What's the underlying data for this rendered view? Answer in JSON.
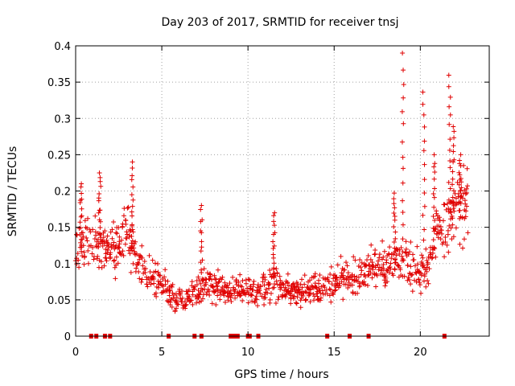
{
  "chart_data": {
    "type": "scatter",
    "title": "Day 203 of 2017, SRMTID for receiver tnsj",
    "xlabel": "GPS time / hours",
    "ylabel": "SRMTID / TECUs",
    "xlim": [
      0,
      24
    ],
    "ylim": [
      0,
      0.4
    ],
    "x_ticks": [
      0,
      5,
      10,
      15,
      20
    ],
    "x_tick_labels": [
      "0",
      "5",
      "10",
      "15",
      "20"
    ],
    "y_ticks": [
      0,
      0.05,
      0.1,
      0.15,
      0.2,
      0.25,
      0.3,
      0.35,
      0.4
    ],
    "y_tick_labels": [
      "0",
      "0.05",
      "0.1",
      "0.15",
      "0.2",
      "0.25",
      "0.3",
      "0.35",
      "0.4"
    ],
    "grid": true,
    "marker": "+",
    "color": "#e00000",
    "trend": {
      "x": [
        0,
        0.5,
        1,
        1.5,
        2,
        2.5,
        3,
        3.5,
        4,
        4.5,
        5,
        5.5,
        6,
        6.5,
        7,
        7.5,
        8,
        8.5,
        9,
        9.5,
        10,
        10.5,
        11,
        11.5,
        12,
        12.5,
        13,
        13.5,
        14,
        14.5,
        15,
        15.5,
        16,
        16.5,
        17,
        17.5,
        18,
        18.5,
        19,
        19.5,
        20,
        20.5,
        21,
        21.5,
        22,
        22.5
      ],
      "y": [
        0.12,
        0.13,
        0.125,
        0.13,
        0.12,
        0.13,
        0.14,
        0.11,
        0.09,
        0.085,
        0.07,
        0.055,
        0.05,
        0.055,
        0.06,
        0.07,
        0.07,
        0.065,
        0.06,
        0.065,
        0.06,
        0.055,
        0.065,
        0.08,
        0.07,
        0.06,
        0.06,
        0.065,
        0.065,
        0.07,
        0.075,
        0.08,
        0.08,
        0.085,
        0.09,
        0.095,
        0.1,
        0.1,
        0.11,
        0.1,
        0.09,
        0.1,
        0.14,
        0.15,
        0.17,
        0.18
      ]
    },
    "spikes": [
      {
        "x": 0.3,
        "y_max": 0.21
      },
      {
        "x": 1.4,
        "y_max": 0.225
      },
      {
        "x": 3.3,
        "y_max": 0.24
      },
      {
        "x": 7.3,
        "y_max": 0.18
      },
      {
        "x": 11.5,
        "y_max": 0.17
      },
      {
        "x": 18.5,
        "y_max": 0.2
      },
      {
        "x": 19.0,
        "y_max": 0.39
      },
      {
        "x": 20.2,
        "y_max": 0.34
      },
      {
        "x": 20.8,
        "y_max": 0.25
      },
      {
        "x": 21.7,
        "y_max": 0.36
      },
      {
        "x": 21.9,
        "y_max": 0.29
      },
      {
        "x": 22.3,
        "y_max": 0.25
      }
    ],
    "gap_markers_x": [
      0.9,
      1.2,
      1.7,
      2.0,
      5.4,
      6.9,
      7.3,
      9.0,
      9.2,
      9.4,
      10.0,
      10.1,
      10.6,
      14.6,
      15.9,
      17.0,
      21.4
    ]
  }
}
